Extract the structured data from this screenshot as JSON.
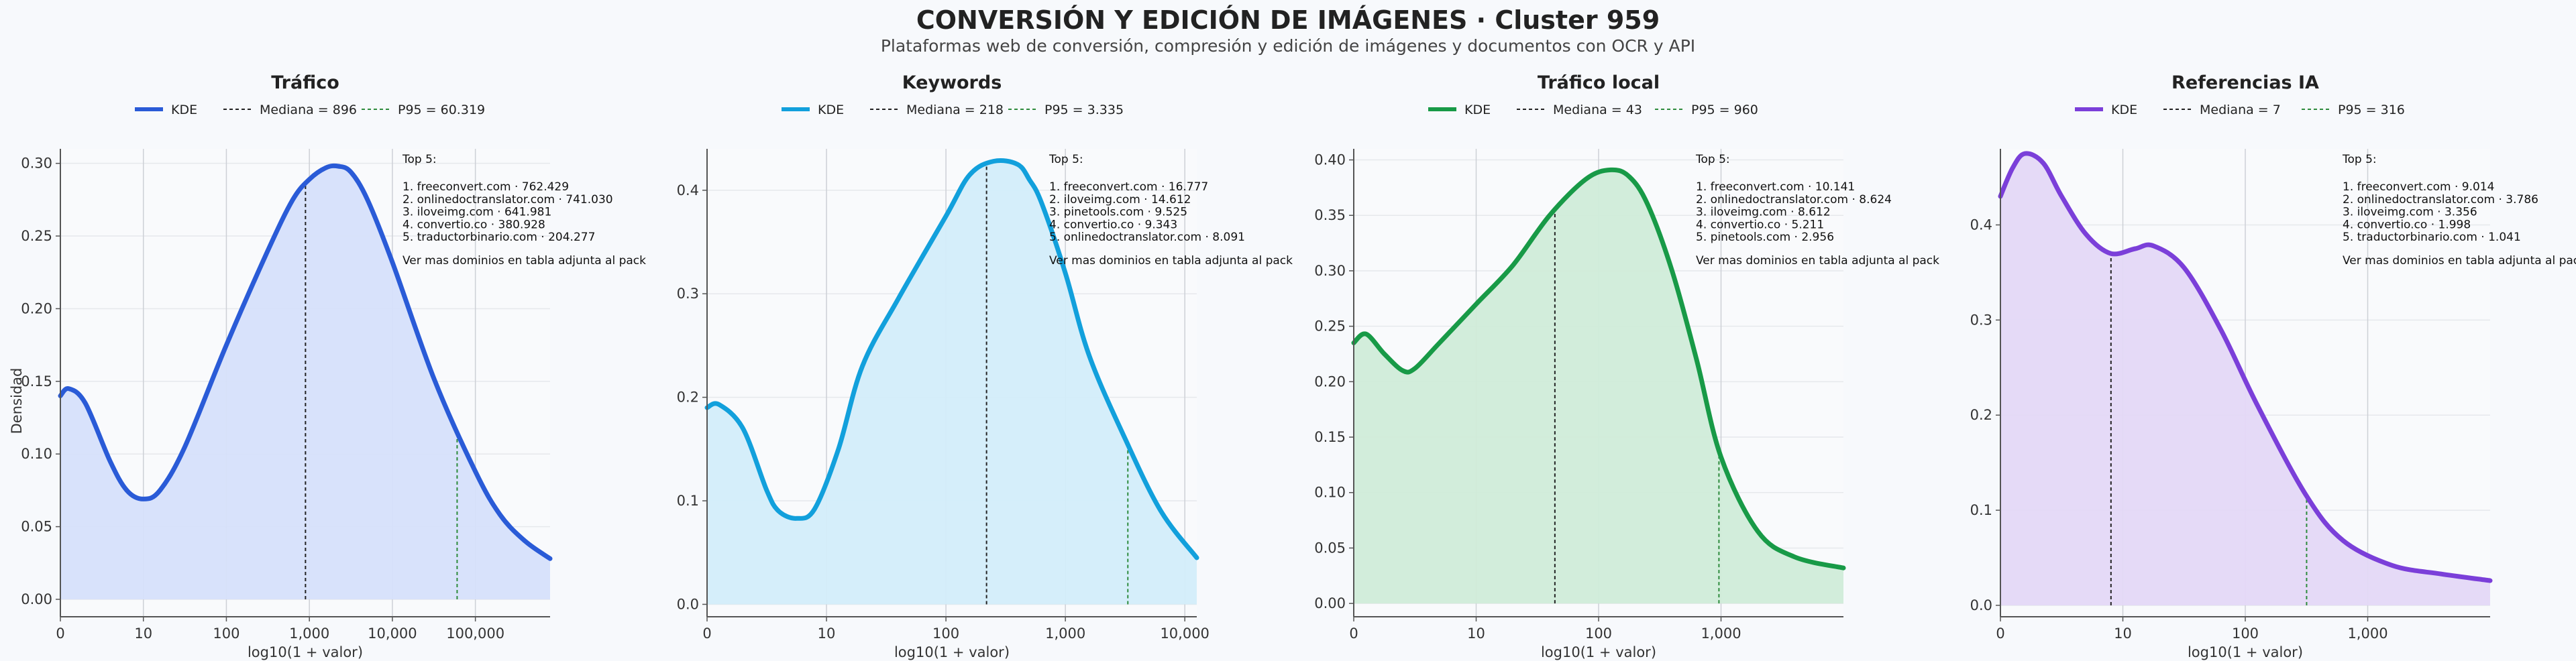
{
  "header": {
    "title": "CONVERSIÓN Y EDICIÓN DE IMÁGENES · Cluster 959",
    "subtitle": "Plataformas web de conversión, compresión y edición de imágenes y documentos con OCR y API"
  },
  "shared": {
    "xlabel": "log10(1 + valor)",
    "ylabel": "Densidad",
    "legend_kde": "KDE",
    "top_title": "Top 5:",
    "top_footer": "Ver mas dominios en tabla adjunta al pack"
  },
  "chart_data": [
    {
      "type": "area",
      "title": "Tráfico",
      "color": "#2a5bd7",
      "fill": "#d6e0fb",
      "legend": [
        "KDE",
        "Mediana = 896",
        "P95 = 60.319"
      ],
      "median_log": 2.953,
      "p95_log": 4.78,
      "xlim": [
        0,
        5.9
      ],
      "ylim": [
        -0.012,
        0.31
      ],
      "xticks": [
        0,
        1,
        2,
        3,
        4,
        5
      ],
      "xtick_labels": [
        "0",
        "10",
        "100",
        "1,000",
        "10,000",
        "100,000"
      ],
      "yticks": [
        0,
        0.05,
        0.1,
        0.15,
        0.2,
        0.25,
        0.3
      ],
      "ytick_labels": [
        "0.00",
        "0.05",
        "0.10",
        "0.15",
        "0.20",
        "0.25",
        "0.30"
      ],
      "curve_x": [
        0,
        0.1,
        0.3,
        0.6,
        0.8,
        1.0,
        1.2,
        1.5,
        2.0,
        2.5,
        2.8,
        3.0,
        3.2,
        3.35,
        3.5,
        3.7,
        4.0,
        4.5,
        5.0,
        5.3,
        5.6,
        5.9
      ],
      "curve_y": [
        0.14,
        0.145,
        0.135,
        0.095,
        0.075,
        0.069,
        0.075,
        0.105,
        0.175,
        0.24,
        0.275,
        0.289,
        0.297,
        0.298,
        0.294,
        0.275,
        0.232,
        0.152,
        0.088,
        0.058,
        0.04,
        0.028
      ],
      "top5": [
        "1. freeconvert.com · 762.429",
        "2. onlinedoctranslator.com · 741.030",
        "3. iloveimg.com · 641.981",
        "4. convertio.co · 380.928",
        "5. traductorbinario.com · 204.277"
      ]
    },
    {
      "type": "area",
      "title": "Keywords",
      "color": "#12a0dc",
      "fill": "#d3edfa",
      "legend": [
        "KDE",
        "Mediana = 218",
        "P95 = 3.335"
      ],
      "median_log": 2.34,
      "p95_log": 3.523,
      "xlim": [
        0,
        4.1
      ],
      "ylim": [
        -0.012,
        0.44
      ],
      "xticks": [
        0,
        1,
        2,
        3,
        4
      ],
      "xtick_labels": [
        "0",
        "10",
        "100",
        "1,000",
        "10,000"
      ],
      "yticks": [
        0,
        0.1,
        0.2,
        0.3,
        0.4
      ],
      "ytick_labels": [
        "0.0",
        "0.1",
        "0.2",
        "0.3",
        "0.4"
      ],
      "curve_x": [
        0,
        0.1,
        0.3,
        0.5,
        0.6,
        0.75,
        0.9,
        1.1,
        1.3,
        1.6,
        2.0,
        2.2,
        2.4,
        2.6,
        2.7,
        2.8,
        3.0,
        3.2,
        3.5,
        3.8,
        4.1
      ],
      "curve_y": [
        0.19,
        0.193,
        0.17,
        0.11,
        0.09,
        0.083,
        0.092,
        0.15,
        0.23,
        0.295,
        0.375,
        0.415,
        0.428,
        0.425,
        0.41,
        0.388,
        0.32,
        0.24,
        0.16,
        0.09,
        0.045
      ],
      "top5": [
        "1. freeconvert.com · 16.777",
        "2. iloveimg.com · 14.612",
        "3. pinetools.com · 9.525",
        "4. convertio.co · 9.343",
        "5. onlinedoctranslator.com · 8.091"
      ]
    },
    {
      "type": "area",
      "title": "Tráfico local",
      "color": "#189a47",
      "fill": "#d0ecd9",
      "legend": [
        "KDE",
        "Mediana = 43",
        "P95 = 960"
      ],
      "median_log": 1.643,
      "p95_log": 2.983,
      "xlim": [
        0,
        4.0
      ],
      "ylim": [
        -0.012,
        0.41
      ],
      "xticks": [
        0,
        1,
        2,
        3
      ],
      "xtick_labels": [
        "0",
        "10",
        "100",
        "1,000"
      ],
      "yticks": [
        0,
        0.05,
        0.1,
        0.15,
        0.2,
        0.25,
        0.3,
        0.35,
        0.4
      ],
      "ytick_labels": [
        "0.00",
        "0.05",
        "0.10",
        "0.15",
        "0.20",
        "0.25",
        "0.30",
        "0.35",
        "0.40"
      ],
      "curve_x": [
        0,
        0.1,
        0.25,
        0.4,
        0.5,
        0.7,
        1.0,
        1.3,
        1.6,
        1.9,
        2.1,
        2.25,
        2.4,
        2.6,
        2.8,
        3.0,
        3.3,
        3.6,
        4.0
      ],
      "curve_y": [
        0.235,
        0.243,
        0.225,
        0.21,
        0.212,
        0.235,
        0.27,
        0.305,
        0.35,
        0.383,
        0.391,
        0.385,
        0.36,
        0.3,
        0.22,
        0.132,
        0.065,
        0.042,
        0.032
      ],
      "top5": [
        "1. freeconvert.com · 10.141",
        "2. onlinedoctranslator.com · 8.624",
        "3. iloveimg.com · 8.612",
        "4. convertio.co · 5.211",
        "5. pinetools.com · 2.956"
      ]
    },
    {
      "type": "area",
      "title": "Referencias IA",
      "color": "#7b3fd9",
      "fill": "#e4d8f7",
      "legend": [
        "KDE",
        "Mediana = 7",
        "P95 = 316"
      ],
      "median_log": 0.903,
      "p95_log": 2.501,
      "xlim": [
        0,
        4.0
      ],
      "ylim": [
        -0.012,
        0.48
      ],
      "xticks": [
        0,
        1,
        2,
        3
      ],
      "xtick_labels": [
        "0",
        "10",
        "100",
        "1,000"
      ],
      "yticks": [
        0,
        0.1,
        0.2,
        0.3,
        0.4
      ],
      "ytick_labels": [
        "0.0",
        "0.1",
        "0.2",
        "0.3",
        "0.4"
      ],
      "curve_x": [
        0,
        0.1,
        0.2,
        0.35,
        0.5,
        0.7,
        0.9,
        1.1,
        1.25,
        1.5,
        1.8,
        2.1,
        2.5,
        2.8,
        3.2,
        3.6,
        4.0
      ],
      "curve_y": [
        0.43,
        0.46,
        0.475,
        0.465,
        0.43,
        0.39,
        0.37,
        0.375,
        0.378,
        0.355,
        0.29,
        0.21,
        0.115,
        0.068,
        0.042,
        0.033,
        0.026
      ],
      "top5": [
        "1. freeconvert.com · 9.014",
        "2. onlinedoctranslator.com · 3.786",
        "3. iloveimg.com · 3.356",
        "4. convertio.co · 1.998",
        "5. traductorbinario.com · 1.041"
      ]
    }
  ]
}
